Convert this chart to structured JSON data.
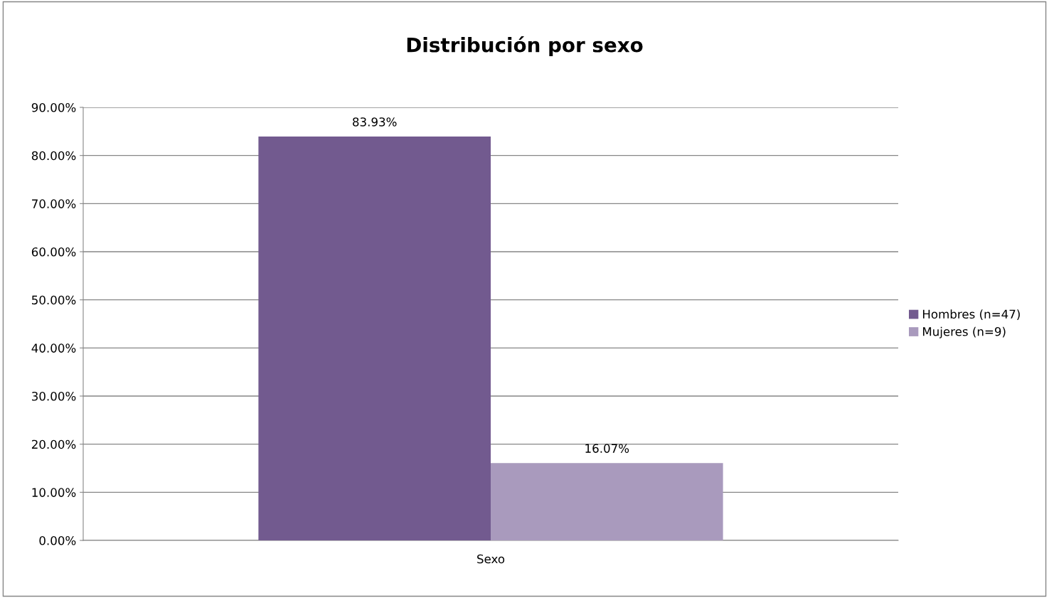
{
  "chart_data": {
    "type": "bar",
    "title": "Distribución por sexo",
    "categories": [
      "Sexo"
    ],
    "series": [
      {
        "name": "Hombres (n=47)",
        "color": "#725a8f",
        "values": [
          83.93
        ],
        "value_labels": [
          "83.93%"
        ]
      },
      {
        "name": "Mujeres (n=9)",
        "color": "#a99abd",
        "values": [
          16.07
        ],
        "value_labels": [
          "16.07%"
        ]
      }
    ],
    "ylim": [
      0,
      90
    ],
    "yticks": [
      {
        "value": 0,
        "label": "0.00%"
      },
      {
        "value": 10,
        "label": "10.00%"
      },
      {
        "value": 20,
        "label": "20.00%"
      },
      {
        "value": 30,
        "label": "30.00%"
      },
      {
        "value": 40,
        "label": "40.00%"
      },
      {
        "value": 50,
        "label": "50.00%"
      },
      {
        "value": 60,
        "label": "60.00%"
      },
      {
        "value": 70,
        "label": "70.00%"
      },
      {
        "value": 80,
        "label": "80.00%"
      },
      {
        "value": 90,
        "label": "90.00%"
      }
    ],
    "grid": "y",
    "legend": "right"
  }
}
